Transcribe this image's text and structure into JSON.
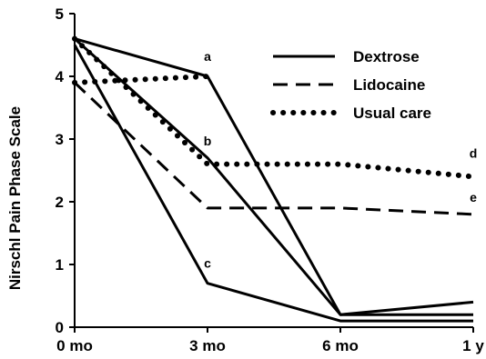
{
  "chart_data": {
    "type": "line",
    "ylabel": "Nirschl Pain Phase Scale",
    "xlabel": "",
    "x_ticks": [
      "0 mo",
      "3 mo",
      "6 mo",
      "1 y"
    ],
    "x_months": [
      0,
      3,
      6,
      12
    ],
    "y_ticks": [
      "0",
      "1",
      "2",
      "3",
      "4",
      "5"
    ],
    "ylim": [
      0,
      5
    ],
    "grid": false,
    "legend": {
      "position": "top-right",
      "entries": [
        {
          "label": "Dextrose",
          "style": "solid"
        },
        {
          "label": "Lidocaine",
          "style": "dashed"
        },
        {
          "label": "Usual care",
          "style": "dotted"
        }
      ]
    },
    "series": [
      {
        "style": "solid",
        "color": "#000000",
        "values": [
          4.6,
          4.0,
          0.2,
          0.2
        ]
      },
      {
        "style": "solid",
        "color": "#000000",
        "values": [
          4.6,
          2.7,
          0.2,
          0.4
        ]
      },
      {
        "style": "solid",
        "color": "#000000",
        "values": [
          4.5,
          0.7,
          0.1,
          0.1
        ]
      },
      {
        "style": "dotted",
        "color": "#000000",
        "values": [
          3.9,
          4.0,
          null,
          null
        ]
      },
      {
        "style": "dotted",
        "color": "#000000",
        "values": [
          4.6,
          2.6,
          2.6,
          2.4
        ]
      },
      {
        "style": "dashed",
        "color": "#000000",
        "values": [
          3.9,
          1.9,
          1.9,
          1.8
        ]
      }
    ],
    "annotations": [
      {
        "text": "a",
        "x_index": 1,
        "y": 4.25
      },
      {
        "text": "b",
        "x_index": 1,
        "y": 2.9
      },
      {
        "text": "c",
        "x_index": 1,
        "y": 0.95
      },
      {
        "text": "d",
        "x_index": 3,
        "y": 2.7
      },
      {
        "text": "e",
        "x_index": 3,
        "y": 2.0
      }
    ]
  }
}
